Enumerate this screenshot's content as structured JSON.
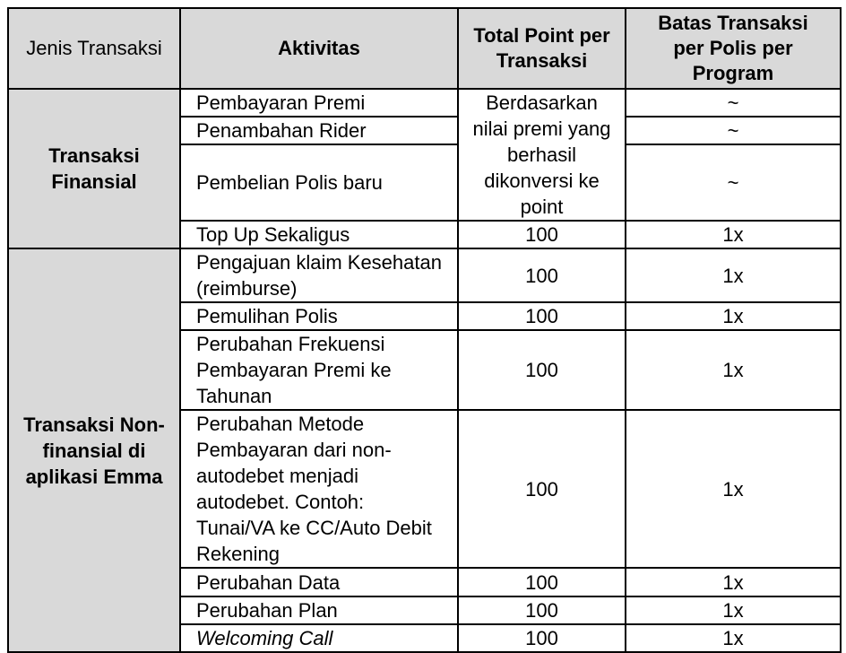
{
  "colors": {
    "header_bg": "#d9d9d9",
    "group_bg": "#d9d9d9",
    "border": "#000000",
    "text": "#000000",
    "page_bg": "#ffffff"
  },
  "header": {
    "jenis_transaksi": "Jenis Transaksi",
    "aktivitas": "Aktivitas",
    "total_point": "Total Point per\nTransaksi",
    "batas": "Batas Transaksi\nper Polis per\nProgram"
  },
  "groups": {
    "finansial": "Transaksi\nFinansial",
    "nonfinansial": "Transaksi Non-\nfinansial di\naplikasi Emma"
  },
  "rows": [
    {
      "aktivitas": "Pembayaran Premi",
      "point": "Berdasarkan\nnilai premi yang\nberhasil\ndikonversi ke\npoint",
      "batas": "~"
    },
    {
      "aktivitas": "Penambahan Rider",
      "batas": "~"
    },
    {
      "aktivitas": "Pembelian Polis baru",
      "batas": "~"
    },
    {
      "aktivitas": "Top Up Sekaligus",
      "point": "100",
      "batas": "1x"
    },
    {
      "aktivitas": "Pengajuan klaim Kesehatan\n(reimburse)",
      "point": "100",
      "batas": "1x"
    },
    {
      "aktivitas": "Pemulihan Polis",
      "point": "100",
      "batas": "1x"
    },
    {
      "aktivitas": "Perubahan Frekuensi\nPembayaran Premi ke\nTahunan",
      "point": "100",
      "batas": "1x"
    },
    {
      "aktivitas": "Perubahan Metode\nPembayaran dari non-\nautodebet menjadi\nautodebet. Contoh:\nTunai/VA ke CC/Auto Debit\nRekening",
      "point": "100",
      "batas": "1x"
    },
    {
      "aktivitas": "Perubahan Data",
      "point": "100",
      "batas": "1x"
    },
    {
      "aktivitas": "Perubahan Plan",
      "point": "100",
      "batas": "1x"
    },
    {
      "aktivitas": "Welcoming Call",
      "point": "100",
      "batas": "1x"
    }
  ]
}
